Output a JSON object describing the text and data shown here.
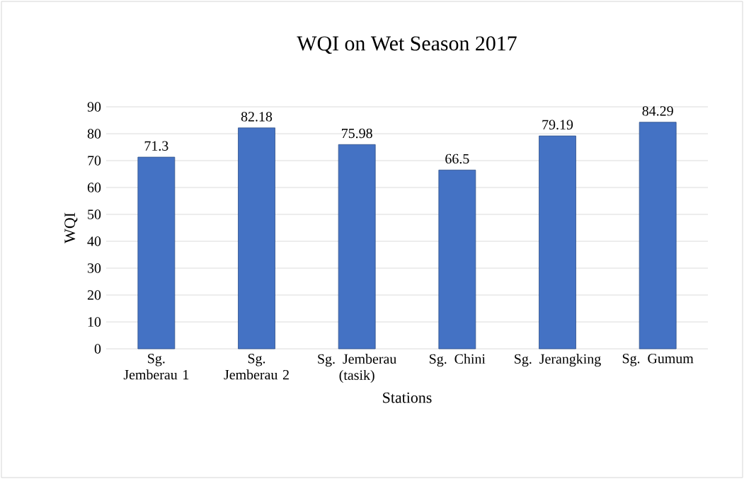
{
  "chart_data": {
    "type": "bar",
    "title": "WQI on Wet Season 2017",
    "xlabel": "Stations",
    "ylabel": "WQI",
    "categories": [
      "Sg. Jemberau 1",
      "Sg. Jemberau 2",
      "Sg. Jemberau (tasik)",
      "Sg. Chini",
      "Sg. Jerangking",
      "Sg. Gumum"
    ],
    "values": [
      71.3,
      82.18,
      75.98,
      66.5,
      79.19,
      84.29
    ],
    "color": "#4472c4",
    "ylim": [
      0,
      90
    ],
    "yticks": [
      0,
      10,
      20,
      30,
      40,
      50,
      60,
      70,
      80,
      90
    ],
    "grid": "y",
    "data_labels": true
  }
}
